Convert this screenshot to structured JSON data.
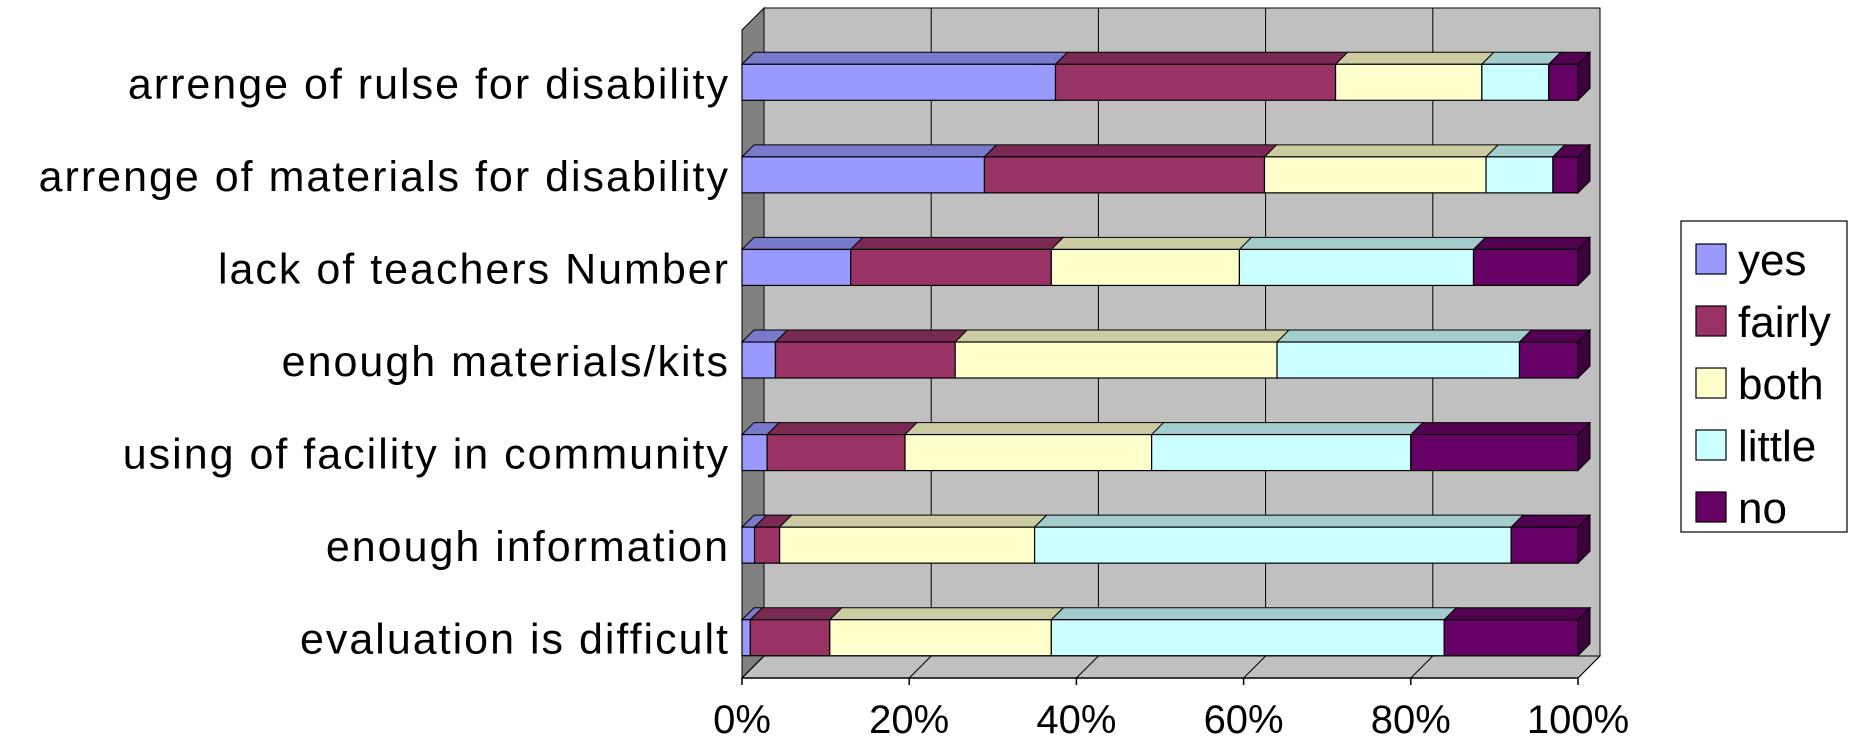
{
  "chart_data": {
    "type": "bar",
    "orientation": "horizontal",
    "stacked": "100%",
    "three_d": true,
    "categories": [
      "arrenge of rulse for disability",
      "arrenge of materials for disability",
      "lack of teachers Number ",
      "enough materials/kits",
      "using of facility in community",
      "enough information",
      "evaluation is  difficult"
    ],
    "series": [
      {
        "name": "yes",
        "color": "#9999FF",
        "values": [
          37.5,
          29,
          13,
          4,
          3,
          1.5,
          1
        ]
      },
      {
        "name": "fairly",
        "color": "#993366",
        "values": [
          33.5,
          33.5,
          24,
          21.5,
          16.5,
          3,
          9.5
        ]
      },
      {
        "name": "both",
        "color": "#FFFFCC",
        "values": [
          17.5,
          26.5,
          22.5,
          38.5,
          29.5,
          30.5,
          26.5
        ]
      },
      {
        "name": "little",
        "color": "#CCFFFF",
        "values": [
          8,
          8,
          28,
          29,
          31,
          57,
          47
        ]
      },
      {
        "name": "no",
        "color": "#660066",
        "values": [
          3.5,
          3,
          12.5,
          7,
          20,
          8,
          16
        ]
      }
    ],
    "x_ticks": [
      "0%",
      "20%",
      "40%",
      "60%",
      "80%",
      "100%"
    ],
    "xlim": [
      0,
      100
    ],
    "grid": true,
    "legend_position": "right",
    "wall_color": "#C0C0C0",
    "side_wall_color": "#808080"
  }
}
